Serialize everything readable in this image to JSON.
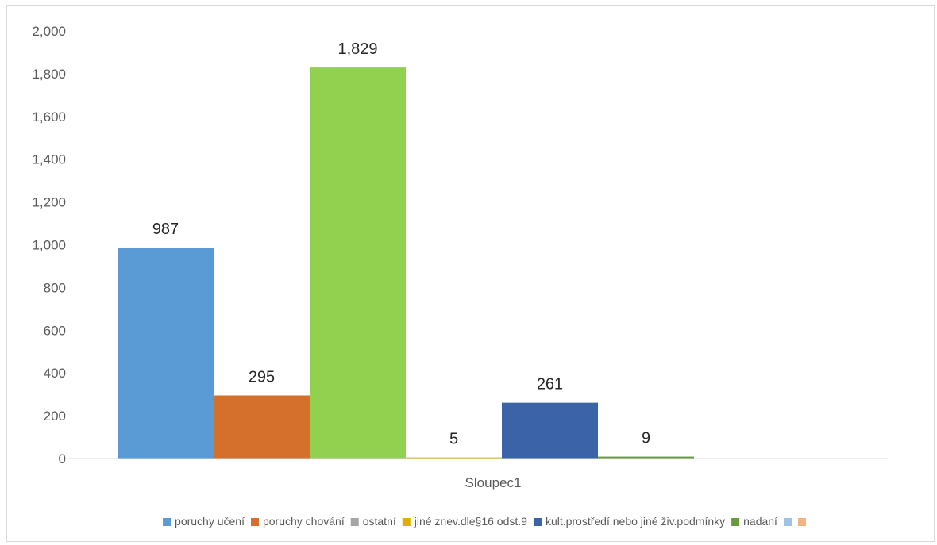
{
  "chart_data": {
    "type": "bar",
    "categories": [
      "Sloupec1"
    ],
    "series": [
      {
        "name": "poruchy učení",
        "values": [
          987
        ],
        "color": "#5b9bd5",
        "label": "987"
      },
      {
        "name": "poruchy chování",
        "values": [
          295
        ],
        "color": "#d4702c",
        "label": "295"
      },
      {
        "name": "",
        "values": [
          1829
        ],
        "color": "#92d050",
        "label": "1,829"
      },
      {
        "name": "jiné znev.dle§16 odst.9",
        "values": [
          5
        ],
        "color": "#e0ae00",
        "label": "5"
      },
      {
        "name": "kult.prostředí nebo jiné živ.podmínky",
        "values": [
          261
        ],
        "color": "#3b63a8",
        "label": "261"
      },
      {
        "name": "nadaní",
        "values": [
          9
        ],
        "color": "#6a9a3f",
        "label": "9"
      }
    ],
    "legend": [
      {
        "name": "poruchy učení",
        "color": "#5b9bd5"
      },
      {
        "name": "poruchy chování",
        "color": "#d4702c"
      },
      {
        "name": "ostatní",
        "color": "#a5a5a5"
      },
      {
        "name": "jiné znev.dle§16 odst.9",
        "color": "#e0ae00"
      },
      {
        "name": "kult.prostředí nebo jiné živ.podmínky",
        "color": "#3b63a8"
      },
      {
        "name": "nadaní",
        "color": "#6a9a3f"
      },
      {
        "name": "",
        "color": "#9dc3e6"
      },
      {
        "name": "",
        "color": "#f4b183"
      }
    ],
    "yticks": [
      "0",
      "200",
      "400",
      "600",
      "800",
      "1,000",
      "1,200",
      "1,400",
      "1,600",
      "1,800",
      "2,000"
    ],
    "ylim": [
      0,
      2000
    ],
    "title": "",
    "xlabel": "",
    "ylabel": "",
    "grid": false,
    "legend_position": "bottom"
  }
}
